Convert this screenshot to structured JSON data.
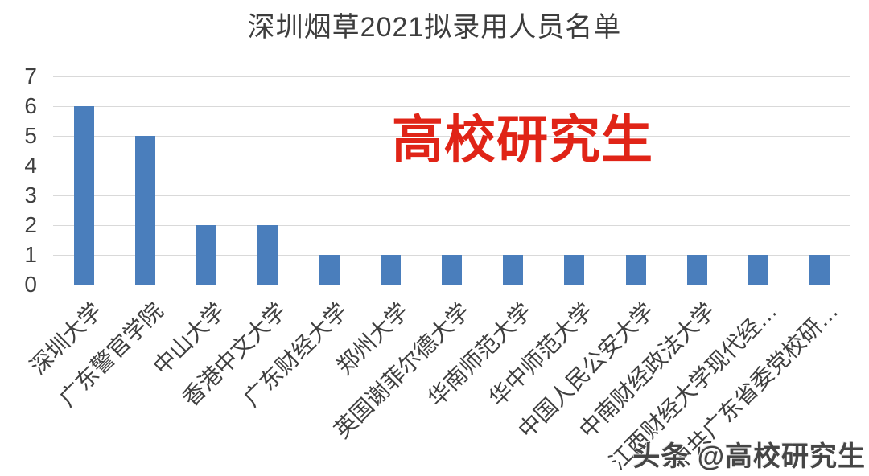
{
  "chart_data": {
    "type": "bar",
    "title": "深圳烟草2021拟录用人员名单",
    "categories": [
      "深圳大学",
      "广东警官学院",
      "中山大学",
      "香港中文大学",
      "广东财经大学",
      "郑州大学",
      "英国谢菲尔德大学",
      "华南师范大学",
      "华中师范大学",
      "中国人民公安大学",
      "中南财经政法大学",
      "江西财经大学现代经…",
      "中共广东省委党校研…"
    ],
    "values": [
      6,
      5,
      2,
      2,
      1,
      1,
      1,
      1,
      1,
      1,
      1,
      1,
      1
    ],
    "xlabel": "",
    "ylabel": "",
    "ylim": [
      0,
      7
    ],
    "yticks": [
      0,
      1,
      2,
      3,
      4,
      5,
      6,
      7
    ],
    "grid": true,
    "legend": false,
    "bar_color": "#4a7ebc",
    "gridline_color": "#d9d9d9",
    "tick_label_color": "#404040",
    "category_label_color": "#3f3f3f",
    "title_color": "#3d3d3d"
  },
  "watermarks": {
    "center": "高校研究生",
    "center_color": "#e02417",
    "bottom_right": "头条 @高校研究生"
  }
}
